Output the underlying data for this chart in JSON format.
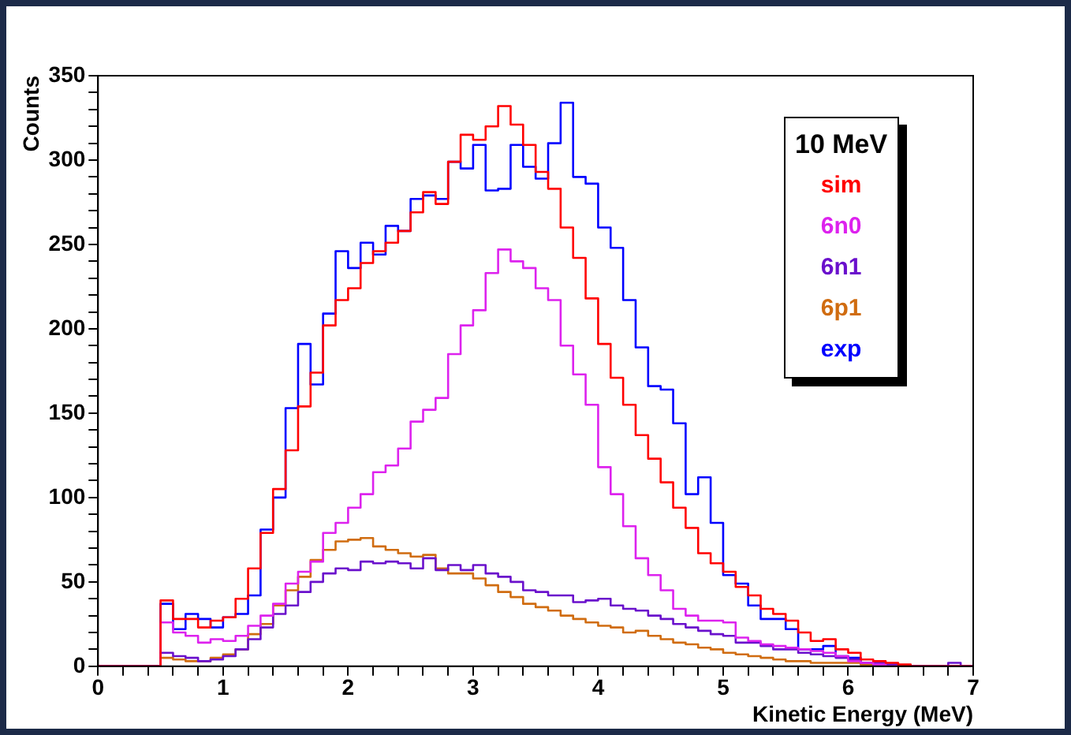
{
  "chart_data": {
    "type": "histogram",
    "xlabel": "Kinetic Energy (MeV)",
    "ylabel": "Counts",
    "legend_title": "10 MeV",
    "legend": "top right",
    "grid": false,
    "xlim": [
      0,
      7
    ],
    "xticks": [
      0,
      {
        "value": 0.2,
        "label": null
      },
      {
        "value": 0.4,
        "label": null
      },
      {
        "value": 0.6,
        "label": null
      },
      {
        "value": 0.8,
        "label": null
      },
      1,
      {
        "value": 1.2,
        "label": null
      },
      {
        "value": 1.4,
        "label": null
      },
      {
        "value": 1.6,
        "label": null
      },
      {
        "value": 1.8,
        "label": null
      },
      2,
      {
        "value": 2.2,
        "label": null
      },
      {
        "value": 2.4,
        "label": null
      },
      {
        "value": 2.6,
        "label": null
      },
      {
        "value": 2.8,
        "label": null
      },
      3,
      {
        "value": 3.2,
        "label": null
      },
      {
        "value": 3.4,
        "label": null
      },
      {
        "value": 3.6,
        "label": null
      },
      {
        "value": 3.8,
        "label": null
      },
      4,
      {
        "value": 4.2,
        "label": null
      },
      {
        "value": 4.4,
        "label": null
      },
      {
        "value": 4.6,
        "label": null
      },
      {
        "value": 4.8,
        "label": null
      },
      5,
      {
        "value": 5.2,
        "label": null
      },
      {
        "value": 5.4,
        "label": null
      },
      {
        "value": 5.6,
        "label": null
      },
      {
        "value": 5.8,
        "label": null
      },
      6,
      {
        "value": 6.2,
        "label": null
      },
      {
        "value": 6.4,
        "label": null
      },
      {
        "value": 6.6,
        "label": null
      },
      {
        "value": 6.8,
        "label": null
      },
      7
    ],
    "ylim": [
      0,
      350
    ],
    "yticks": [
      0,
      {
        "value": 10,
        "label": null
      },
      {
        "value": 20,
        "label": null
      },
      {
        "value": 30,
        "label": null
      },
      {
        "value": 40,
        "label": null
      },
      50,
      {
        "value": 60,
        "label": null
      },
      {
        "value": 70,
        "label": null
      },
      {
        "value": 80,
        "label": null
      },
      {
        "value": 90,
        "label": null
      },
      100,
      {
        "value": 110,
        "label": null
      },
      {
        "value": 120,
        "label": null
      },
      {
        "value": 130,
        "label": null
      },
      {
        "value": 140,
        "label": null
      },
      150,
      {
        "value": 160,
        "label": null
      },
      {
        "value": 170,
        "label": null
      },
      {
        "value": 180,
        "label": null
      },
      {
        "value": 190,
        "label": null
      },
      200,
      {
        "value": 210,
        "label": null
      },
      {
        "value": 220,
        "label": null
      },
      {
        "value": 230,
        "label": null
      },
      {
        "value": 240,
        "label": null
      },
      250,
      {
        "value": 260,
        "label": null
      },
      {
        "value": 270,
        "label": null
      },
      {
        "value": 280,
        "label": null
      },
      {
        "value": 290,
        "label": null
      },
      300,
      {
        "value": 310,
        "label": null
      },
      {
        "value": 320,
        "label": null
      },
      {
        "value": 330,
        "label": null
      },
      {
        "value": 340,
        "label": null
      },
      350
    ],
    "bins": [
      0,
      0.1,
      0.2,
      0.3,
      0.4,
      0.5,
      0.6,
      0.7,
      0.8,
      0.9,
      1,
      1.1,
      1.2,
      1.3,
      1.4,
      1.5,
      1.6,
      1.7,
      1.8,
      1.9,
      2,
      2.1,
      2.2,
      2.3,
      2.4,
      2.5,
      2.6,
      2.7,
      2.8,
      2.9,
      3,
      3.1,
      3.2,
      3.3,
      3.4,
      3.5,
      3.6,
      3.7,
      3.8,
      3.9,
      4,
      4.1,
      4.2,
      4.3,
      4.4,
      4.5,
      4.6,
      4.7,
      4.8,
      4.9,
      5,
      5.1,
      5.2,
      5.3,
      5.4,
      5.5,
      5.6,
      5.7,
      5.8,
      5.9,
      6,
      6.1,
      6.2,
      6.3,
      6.4,
      6.5,
      6.6,
      6.7,
      6.8,
      6.9,
      7
    ],
    "series": [
      {
        "name": "sim",
        "color": "#ff0000",
        "values": [
          0,
          0,
          0,
          0,
          0,
          39,
          28,
          28,
          23,
          27,
          29,
          40,
          58,
          79,
          105,
          128,
          154,
          174,
          202,
          217,
          224,
          239,
          246,
          251,
          258,
          269,
          281,
          274,
          299,
          315,
          312,
          320,
          332,
          321,
          309,
          293,
          283,
          260,
          242,
          218,
          191,
          171,
          155,
          137,
          123,
          109,
          94,
          82,
          67,
          61,
          56,
          47,
          42,
          34,
          31,
          27,
          20,
          15,
          16,
          10,
          8,
          4,
          3,
          2,
          1,
          0,
          0,
          0,
          0,
          0
        ]
      },
      {
        "name": "6n0",
        "color": "#dd22ee",
        "values": [
          0,
          0,
          0,
          0,
          0,
          26,
          20,
          18,
          14,
          16,
          15,
          18,
          24,
          30,
          37,
          49,
          56,
          62,
          79,
          85,
          94,
          102,
          115,
          119,
          129,
          145,
          152,
          159,
          185,
          202,
          211,
          233,
          247,
          240,
          236,
          224,
          217,
          190,
          173,
          155,
          118,
          102,
          83,
          64,
          54,
          45,
          34,
          30,
          27,
          27,
          26,
          17,
          15,
          13,
          12,
          11,
          10,
          9,
          8,
          6,
          3,
          2,
          1,
          0,
          0,
          0,
          0,
          0,
          0,
          0
        ]
      },
      {
        "name": "6n1",
        "color": "#6a10cc",
        "values": [
          0,
          0,
          0,
          0,
          0,
          8,
          6,
          5,
          3,
          4,
          6,
          10,
          16,
          23,
          31,
          36,
          44,
          50,
          55,
          58,
          57,
          62,
          61,
          62,
          61,
          58,
          64,
          57,
          60,
          57,
          60,
          55,
          53,
          50,
          45,
          44,
          42,
          42,
          38,
          39,
          40,
          36,
          34,
          33,
          30,
          28,
          25,
          23,
          21,
          19,
          18,
          14,
          14,
          12,
          10,
          10,
          8,
          7,
          6,
          5,
          4,
          2,
          2,
          1,
          0,
          0,
          0,
          0,
          2,
          0
        ]
      },
      {
        "name": "6p1",
        "color": "#d06c10",
        "values": [
          0,
          0,
          0,
          0,
          0,
          5,
          4,
          3,
          3,
          5,
          7,
          10,
          19,
          25,
          36,
          45,
          53,
          63,
          69,
          74,
          75,
          76,
          71,
          69,
          67,
          65,
          66,
          58,
          55,
          55,
          52,
          48,
          44,
          41,
          37,
          35,
          33,
          30,
          28,
          26,
          24,
          23,
          20,
          21,
          18,
          16,
          14,
          13,
          11,
          10,
          8,
          7,
          6,
          5,
          4,
          3,
          3,
          2,
          2,
          2,
          2,
          1,
          0,
          0,
          0,
          0,
          0,
          0,
          0,
          0
        ]
      },
      {
        "name": "exp",
        "color": "#0000ff",
        "values": [
          0,
          0,
          0,
          0,
          0,
          37,
          22,
          31,
          28,
          23,
          29,
          31,
          42,
          81,
          100,
          153,
          191,
          167,
          209,
          246,
          236,
          251,
          244,
          261,
          258,
          277,
          279,
          277,
          299,
          295,
          309,
          282,
          283,
          309,
          296,
          289,
          310,
          334,
          290,
          286,
          260,
          248,
          217,
          189,
          166,
          164,
          144,
          102,
          112,
          85,
          54,
          49,
          36,
          28,
          28,
          22,
          10,
          10,
          12,
          6,
          5,
          2,
          1,
          0,
          0,
          0,
          0,
          0,
          0,
          0
        ]
      }
    ]
  }
}
